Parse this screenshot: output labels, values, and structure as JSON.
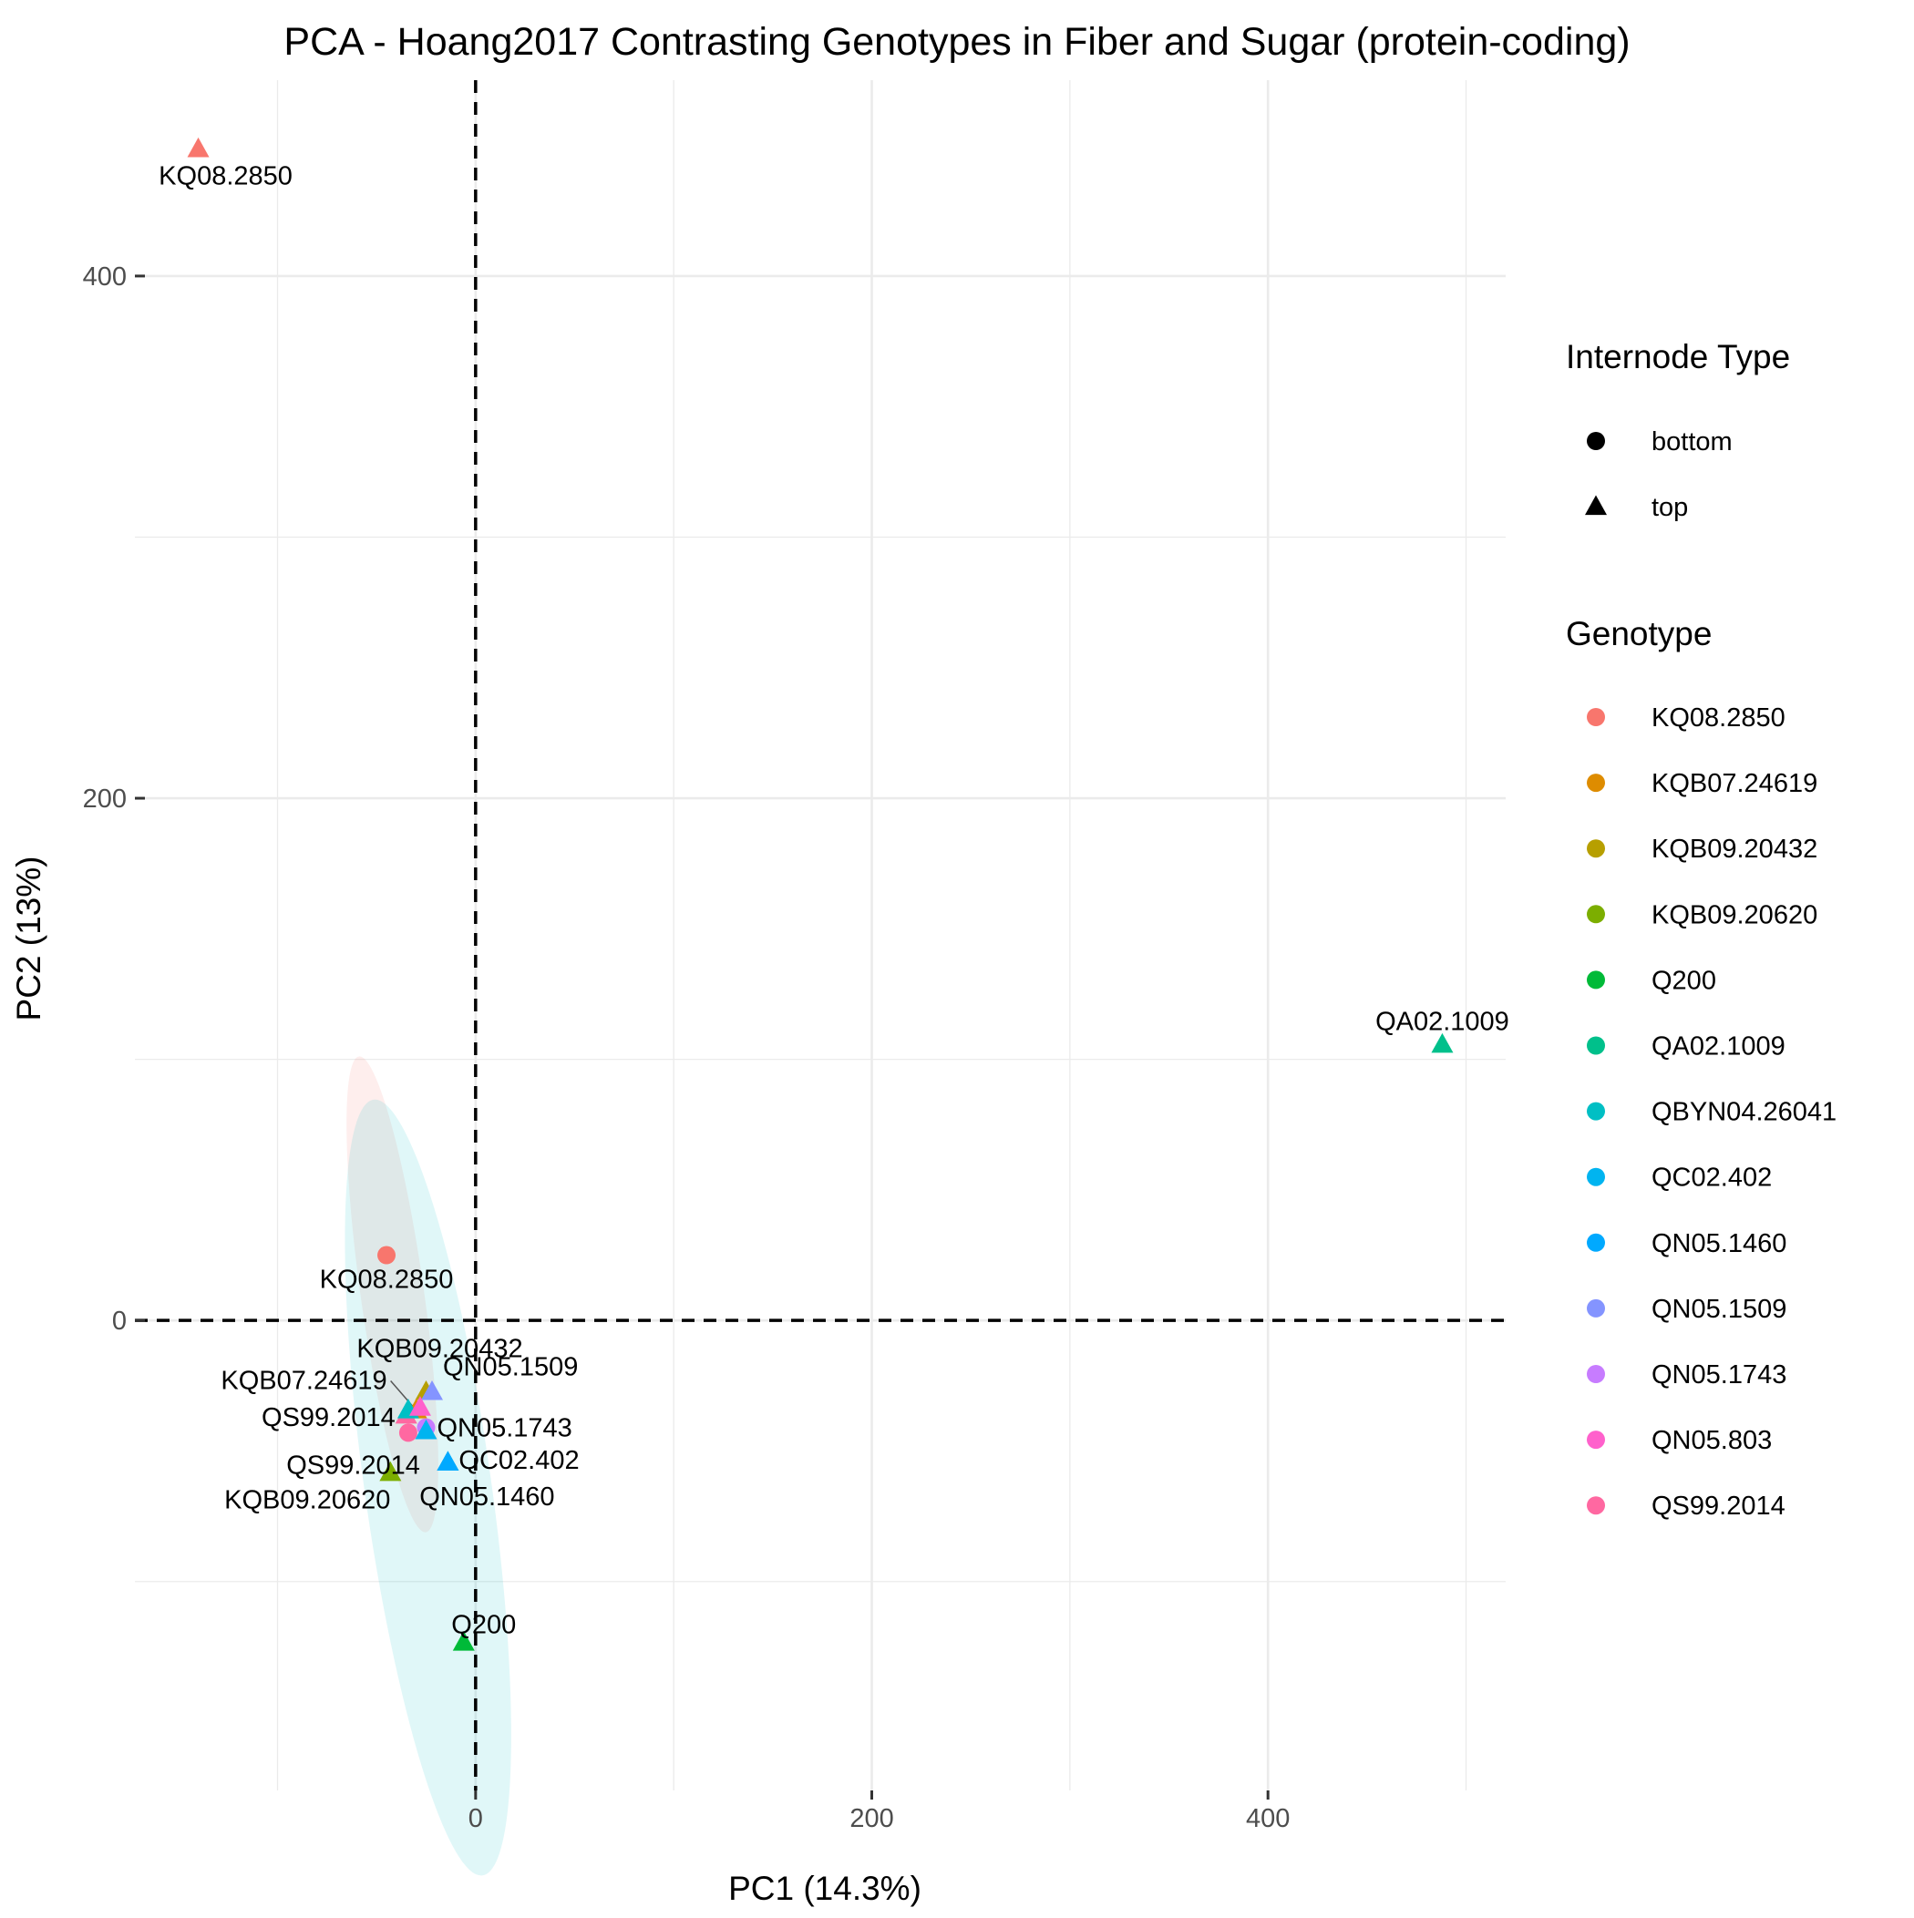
{
  "chart_data": {
    "type": "scatter",
    "title": "PCA - Hoang2017 Contrasting Genotypes in Fiber and Sugar (protein-coding)",
    "xlabel": "PC1 (14.3%)",
    "ylabel": "PC2 (13%)",
    "xlim": [
      -172,
      520
    ],
    "ylim": [
      -180,
      475
    ],
    "xticks": [
      0,
      200,
      400
    ],
    "yticks": [
      0,
      200,
      400
    ],
    "x_tick_labels": [
      "0",
      "200",
      "400"
    ],
    "y_tick_labels": [
      "0",
      "200",
      "400"
    ],
    "grid": true,
    "reference_lines": {
      "x": 0,
      "y": 0,
      "style": "dashed"
    },
    "legend_position": "right",
    "legends": [
      {
        "title": "Internode Type",
        "entries": [
          {
            "label": "bottom",
            "shape": "circle"
          },
          {
            "label": "top",
            "shape": "triangle"
          }
        ]
      },
      {
        "title": "Genotype",
        "entries": [
          {
            "label": "KQ08.2850",
            "color": "#F8766D"
          },
          {
            "label": "KQB07.24619",
            "color": "#DE8C00"
          },
          {
            "label": "KQB09.20432",
            "color": "#B79F00"
          },
          {
            "label": "KQB09.20620",
            "color": "#7CAE00"
          },
          {
            "label": "Q200",
            "color": "#00BA38"
          },
          {
            "label": "QA02.1009",
            "color": "#00C08B"
          },
          {
            "label": "QBYN04.26041",
            "color": "#00BFC4"
          },
          {
            "label": "QC02.402",
            "color": "#00B4F0"
          },
          {
            "label": "QN05.1460",
            "color": "#00A9FF"
          },
          {
            "label": "QN05.1509",
            "color": "#8494FF"
          },
          {
            "label": "QN05.1743",
            "color": "#C77CFF"
          },
          {
            "label": "QN05.803",
            "color": "#FF61CC"
          },
          {
            "label": "QS99.2014",
            "color": "#FF68A1"
          }
        ]
      }
    ],
    "ellipses": [
      {
        "group": "bottom",
        "color": "#F8766D",
        "center": [
          -42,
          10
        ],
        "semi_axes": [
          16,
          92
        ],
        "angle_deg": -8
      },
      {
        "group": "top",
        "color": "#00BFC4",
        "center": [
          -24,
          -64
        ],
        "semi_axes": [
          32,
          150
        ],
        "angle_deg": -8
      }
    ],
    "points": [
      {
        "label": "KQ08.2850",
        "genotype": "KQ08.2850",
        "internode": "top",
        "x": -140,
        "y": 448,
        "color": "#F8766D"
      },
      {
        "label": "KQ08.2850",
        "genotype": "KQ08.2850",
        "internode": "bottom",
        "x": -45,
        "y": 25,
        "color": "#F8766D"
      },
      {
        "label": "QA02.1009",
        "genotype": "QA02.1009",
        "internode": "top",
        "x": 488,
        "y": 105,
        "color": "#00C08B"
      },
      {
        "label": "KQB09.20432",
        "genotype": "KQB09.20432",
        "internode": "top",
        "x": -25,
        "y": -28,
        "color": "#B79F00"
      },
      {
        "label": "KQB07.24619",
        "genotype": "KQB07.24619",
        "internode": "top",
        "x": -30,
        "y": -35,
        "color": "#DE8C00"
      },
      {
        "label": "QN05.1509",
        "genotype": "QN05.1509",
        "internode": "top",
        "x": -22,
        "y": -28,
        "color": "#8494FF"
      },
      {
        "label": "QS99.2014",
        "genotype": "QS99.2014",
        "internode": "top",
        "x": -35,
        "y": -37,
        "color": "#FF68A1"
      },
      {
        "label": "QN05.1743",
        "genotype": "QN05.1743",
        "internode": "bottom",
        "x": -25,
        "y": -41,
        "color": "#C77CFF"
      },
      {
        "label": "",
        "genotype": "QBYN04.26041",
        "internode": "top",
        "x": -34,
        "y": -35,
        "color": "#00BFC4"
      },
      {
        "label": "",
        "genotype": "QC02.402",
        "internode": "top",
        "x": -25,
        "y": -43,
        "color": "#00B4F0"
      },
      {
        "label": "",
        "genotype": "QN05.803",
        "internode": "top",
        "x": -28,
        "y": -34,
        "color": "#FF61CC"
      },
      {
        "label": "QS99.2014",
        "genotype": "QS99.2014",
        "internode": "bottom",
        "x": -34,
        "y": -43,
        "color": "#FF68A1"
      },
      {
        "label": "QC02.402",
        "genotype": "QC02.402",
        "internode": "top",
        "x": -14,
        "y": -55,
        "color": "#00B4F0"
      },
      {
        "label": "KQB09.20620",
        "genotype": "KQB09.20620",
        "internode": "top",
        "x": -43,
        "y": -59,
        "color": "#7CAE00"
      },
      {
        "label": "QN05.1460",
        "genotype": "QN05.1460",
        "internode": "top",
        "x": -14,
        "y": -55,
        "color": "#00A9FF"
      },
      {
        "label": "Q200",
        "genotype": "Q200",
        "internode": "top",
        "x": -6,
        "y": -124,
        "color": "#00BA38"
      }
    ]
  }
}
